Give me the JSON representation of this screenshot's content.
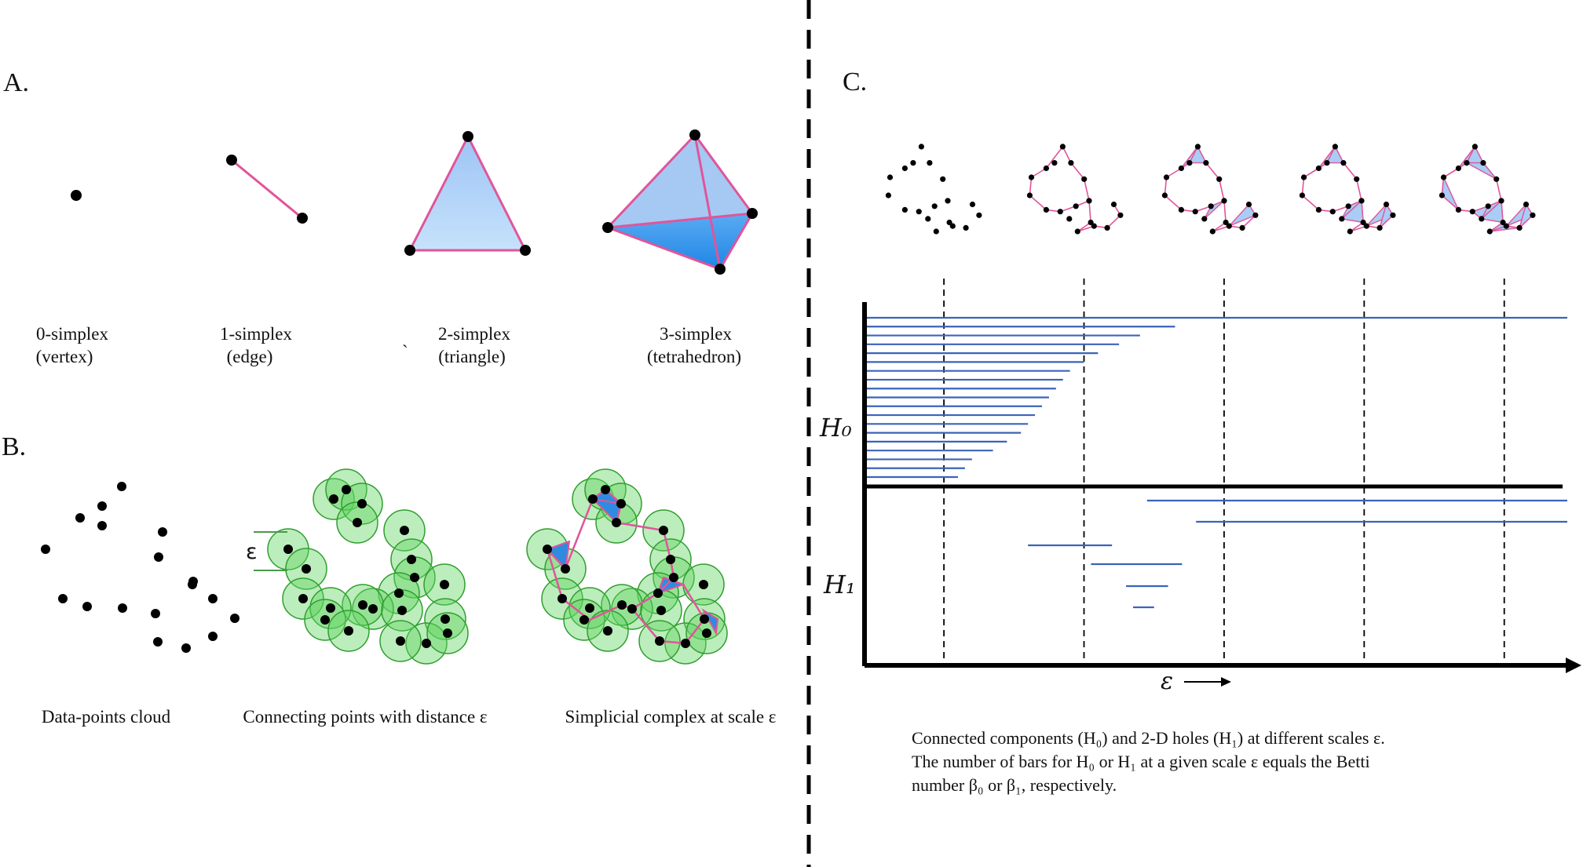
{
  "panel_a": {
    "label": "A.",
    "simplices": [
      {
        "name": "0-simplex",
        "desc": "(vertex)"
      },
      {
        "name": "1-simplex",
        "desc": "(edge)"
      },
      {
        "name": "2-simplex",
        "desc": "(triangle)"
      },
      {
        "name": "3-simplex",
        "desc": "(tetrahedron)"
      }
    ],
    "stray_mark": "`"
  },
  "panel_b": {
    "label": "B.",
    "epsilon_symbol": "ε",
    "captions": [
      "Data-points cloud",
      "Connecting points with distance ε",
      "Simplicial complex at scale ε"
    ]
  },
  "panel_c": {
    "label": "C.",
    "h0_label": "H₀",
    "h1_label": "H₁",
    "axis_label": "ε",
    "caption_lines": [
      "Connected components (H₀) and 2-D holes (H₁) at different scales ε.",
      "The number of bars for H₀ or H₁ at a given scale ε equals the Betti",
      "number β₀ or β₁, respectively."
    ]
  },
  "colors": {
    "edge": "#e0559a",
    "fill": "#a9cdf5",
    "fill_dark": "#2f8be0",
    "ball": "#5fd35f",
    "bar": "#3b63b8",
    "ink": "#000000"
  },
  "chart_data": {
    "type": "bar",
    "subtype": "persistence-barcode",
    "xlabel": "ε",
    "xlim": [
      0,
      1
    ],
    "h0_bars": [
      [
        0,
        1.0
      ],
      [
        0,
        0.44
      ],
      [
        0,
        0.39
      ],
      [
        0,
        0.36
      ],
      [
        0,
        0.33
      ],
      [
        0,
        0.31
      ],
      [
        0,
        0.29
      ],
      [
        0,
        0.28
      ],
      [
        0,
        0.27
      ],
      [
        0,
        0.26
      ],
      [
        0,
        0.25
      ],
      [
        0,
        0.24
      ],
      [
        0,
        0.23
      ],
      [
        0,
        0.22
      ],
      [
        0,
        0.2
      ],
      [
        0,
        0.18
      ],
      [
        0,
        0.15
      ],
      [
        0,
        0.14
      ],
      [
        0,
        0.13
      ]
    ],
    "h1_bars": [
      [
        0.4,
        1.0
      ],
      [
        0.47,
        1.0
      ],
      [
        0.23,
        0.35
      ],
      [
        0.32,
        0.45
      ],
      [
        0.37,
        0.43
      ],
      [
        0.38,
        0.41
      ]
    ],
    "scale_markers": [
      0.11,
      0.31,
      0.51,
      0.71,
      0.91
    ]
  }
}
